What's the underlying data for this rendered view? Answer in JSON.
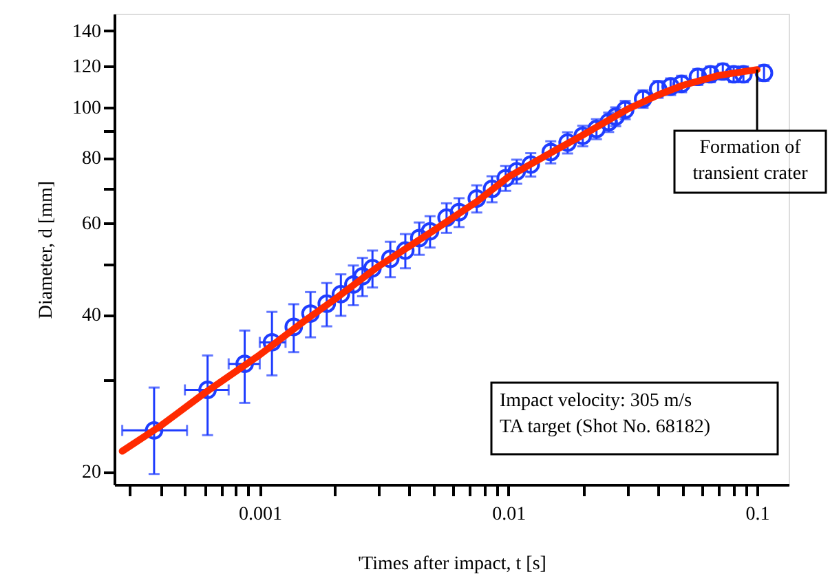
{
  "chart_data": {
    "type": "scatter",
    "xlabel": "'Times after impact, t [s]",
    "ylabel": "Diameter, d [mm]",
    "log": "xy",
    "grid": false,
    "xlim": [
      0.00026,
      0.134
    ],
    "ylim": [
      18.9,
      151
    ],
    "xticks": [
      {
        "value": 0.0003,
        "label": null
      },
      {
        "value": 0.0004,
        "label": null
      },
      {
        "value": 0.0005,
        "label": null
      },
      {
        "value": 0.0006,
        "label": null
      },
      {
        "value": 0.0007,
        "label": null
      },
      {
        "value": 0.0008,
        "label": null
      },
      {
        "value": 0.0009,
        "label": null
      },
      0.001,
      {
        "value": 0.002,
        "label": null
      },
      {
        "value": 0.003,
        "label": null
      },
      {
        "value": 0.004,
        "label": null
      },
      {
        "value": 0.005,
        "label": null
      },
      {
        "value": 0.006,
        "label": null
      },
      {
        "value": 0.007,
        "label": null
      },
      {
        "value": 0.008,
        "label": null
      },
      {
        "value": 0.009,
        "label": null
      },
      0.01,
      {
        "value": 0.02,
        "label": null
      },
      {
        "value": 0.03,
        "label": null
      },
      {
        "value": 0.04,
        "label": null
      },
      {
        "value": 0.05,
        "label": null
      },
      {
        "value": 0.06,
        "label": null
      },
      {
        "value": 0.07,
        "label": null
      },
      {
        "value": 0.08,
        "label": null
      },
      {
        "value": 0.09,
        "label": null
      },
      0.1
    ],
    "yticks": [
      20,
      {
        "value": 30,
        "label": null
      },
      40,
      {
        "value": 50,
        "label": null
      },
      60,
      {
        "value": 70,
        "label": null
      },
      80,
      {
        "value": 90,
        "label": null
      },
      100,
      120,
      140
    ],
    "series": [
      {
        "color": "#1f3dff",
        "marker": "circle",
        "x": [
          0.000376,
          0.000617,
          0.00087,
          0.00112,
          0.00137,
          0.0016,
          0.00186,
          0.00212,
          0.00238,
          0.00259,
          0.00284,
          0.00335,
          0.00385,
          0.00438,
          0.00484,
          0.00564,
          0.00633,
          0.00746,
          0.00859,
          0.00975,
          0.0108,
          0.0123,
          0.0148,
          0.0173,
          0.0199,
          0.0226,
          0.0253,
          0.027,
          0.0295,
          0.0348,
          0.04,
          0.0449,
          0.0497,
          0.0578,
          0.0649,
          0.0728,
          0.0805,
          0.0881,
          0.1066
        ],
        "values": [
          24.0,
          28.7,
          32.2,
          35.4,
          37.9,
          40.2,
          42.0,
          43.8,
          45.7,
          47.4,
          49.1,
          51.2,
          53.1,
          56.1,
          57.8,
          61.4,
          62.9,
          66.8,
          69.7,
          73.1,
          75.3,
          77.6,
          82.0,
          85.5,
          88.1,
          90.8,
          93.6,
          95.9,
          98.8,
          103.7,
          108.2,
          109.5,
          110.8,
          114.3,
          115.6,
          117.0,
          115.6,
          115.6,
          116.3
        ],
        "errors": [
          [
            19.8,
            29.0
          ],
          [
            23.5,
            33.4
          ],
          [
            27.1,
            37.3
          ],
          [
            30.6,
            40.5
          ],
          4,
          4,
          4,
          4,
          4,
          4,
          4,
          4,
          4,
          4,
          4,
          4,
          4,
          4,
          4,
          4,
          4,
          4,
          4,
          4,
          4,
          4,
          4,
          4,
          4,
          4,
          4,
          4,
          4,
          4,
          4,
          4,
          4,
          4,
          4
        ],
        "xerrors": [
          [
            0.00028,
            0.00051
          ],
          [
            0.0005,
            0.00075
          ],
          [
            0.00075,
            0.001
          ],
          [
            0.001,
            0.00127
          ],
          null,
          null,
          null,
          null,
          null,
          null,
          null,
          null,
          null,
          null,
          null,
          null,
          null,
          null,
          null,
          null,
          null,
          null,
          null,
          null,
          null,
          null,
          null,
          null,
          null,
          null,
          null,
          null,
          null,
          null,
          null,
          null,
          null,
          null,
          null
        ]
      },
      {
        "type": "line",
        "color": "#ff2a00",
        "line_style": "solid",
        "x": [
          0.00028,
          0.0004,
          0.0006,
          0.001,
          0.0015,
          0.002,
          0.003,
          0.005,
          0.0075,
          0.01,
          0.015,
          0.02,
          0.03,
          0.04,
          0.05,
          0.07,
          0.1
        ],
        "values": [
          21.9,
          24.5,
          28.3,
          33.5,
          38.8,
          42.8,
          49.5,
          58,
          66,
          73.5,
          82,
          88.5,
          99,
          105.5,
          110,
          115,
          118
        ]
      }
    ],
    "annotations": [
      {
        "text": "Formation of\ntransient crater",
        "x": 0.1,
        "y": 118
      },
      "Impact velocity: 305 m/s\nTA target (Shot No. 68182)"
    ]
  }
}
